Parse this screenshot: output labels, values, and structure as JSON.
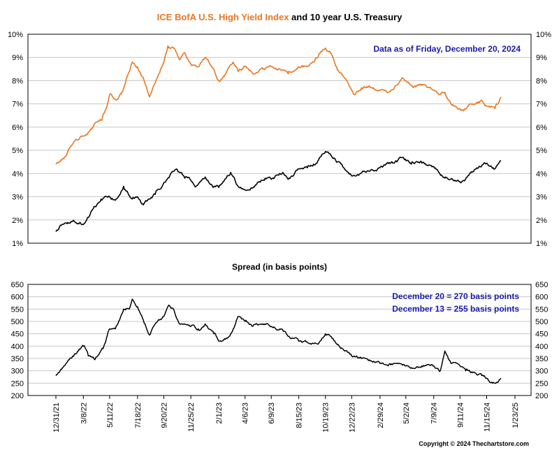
{
  "chart_data": [
    {
      "type": "line",
      "title_parts": [
        {
          "text": "ICE BofA U.S. High Yield Index",
          "color": "#e87722"
        },
        {
          "text": " and 10 year U.S. Treasury",
          "color": "#000000"
        }
      ],
      "annotation": "Data as of Friday, December 20, 2024",
      "annotation_color": "#1a1aa8",
      "ylim": [
        1,
        10
      ],
      "y_ticks": [
        "1%",
        "2%",
        "3%",
        "4%",
        "5%",
        "6%",
        "7%",
        "8%",
        "9%",
        "10%"
      ],
      "x_range": [
        "2021-12-31",
        "2025-01-23"
      ],
      "grid": true,
      "series": [
        {
          "name": "ICE BofA U.S. High Yield Index",
          "color": "#e87722",
          "points": [
            [
              "2021-12-31",
              4.4
            ],
            [
              "2022-01-21",
              4.7
            ],
            [
              "2022-02-11",
              5.3
            ],
            [
              "2022-03-04",
              5.6
            ],
            [
              "2022-03-18",
              5.7
            ],
            [
              "2022-04-01",
              6.0
            ],
            [
              "2022-04-22",
              6.3
            ],
            [
              "2022-05-06",
              7.0
            ],
            [
              "2022-05-11",
              7.4
            ],
            [
              "2022-05-25",
              7.2
            ],
            [
              "2022-06-10",
              7.5
            ],
            [
              "2022-06-23",
              8.2
            ],
            [
              "2022-07-05",
              8.8
            ],
            [
              "2022-07-18",
              8.6
            ],
            [
              "2022-08-05",
              7.9
            ],
            [
              "2022-08-16",
              7.3
            ],
            [
              "2022-08-30",
              7.9
            ],
            [
              "2022-09-20",
              8.8
            ],
            [
              "2022-09-30",
              9.5
            ],
            [
              "2022-10-14",
              9.4
            ],
            [
              "2022-10-28",
              8.9
            ],
            [
              "2022-11-10",
              9.2
            ],
            [
              "2022-11-25",
              8.7
            ],
            [
              "2022-12-13",
              8.6
            ],
            [
              "2022-12-30",
              9.0
            ],
            [
              "2023-01-20",
              8.5
            ],
            [
              "2023-02-01",
              8.0
            ],
            [
              "2023-02-15",
              8.2
            ],
            [
              "2023-03-08",
              8.8
            ],
            [
              "2023-03-20",
              8.4
            ],
            [
              "2023-04-06",
              8.6
            ],
            [
              "2023-04-25",
              8.3
            ],
            [
              "2023-05-20",
              8.5
            ],
            [
              "2023-06-09",
              8.6
            ],
            [
              "2023-06-30",
              8.5
            ],
            [
              "2023-07-20",
              8.3
            ],
            [
              "2023-08-15",
              8.6
            ],
            [
              "2023-09-05",
              8.6
            ],
            [
              "2023-09-20",
              8.8
            ],
            [
              "2023-10-06",
              9.2
            ],
            [
              "2023-10-19",
              9.4
            ],
            [
              "2023-10-31",
              9.2
            ],
            [
              "2023-11-15",
              8.6
            ],
            [
              "2023-12-05",
              8.1
            ],
            [
              "2023-12-22",
              7.6
            ],
            [
              "2023-12-28",
              7.4
            ],
            [
              "2024-01-15",
              7.7
            ],
            [
              "2024-02-05",
              7.7
            ],
            [
              "2024-02-29",
              7.6
            ],
            [
              "2024-03-20",
              7.5
            ],
            [
              "2024-04-10",
              7.8
            ],
            [
              "2024-04-25",
              8.1
            ],
            [
              "2024-05-02",
              8.0
            ],
            [
              "2024-05-20",
              7.7
            ],
            [
              "2024-06-10",
              7.8
            ],
            [
              "2024-06-28",
              7.7
            ],
            [
              "2024-07-09",
              7.6
            ],
            [
              "2024-07-25",
              7.4
            ],
            [
              "2024-08-05",
              7.5
            ],
            [
              "2024-08-20",
              7.0
            ],
            [
              "2024-09-11",
              6.8
            ],
            [
              "2024-09-20",
              6.7
            ],
            [
              "2024-10-05",
              7.0
            ],
            [
              "2024-10-20",
              7.0
            ],
            [
              "2024-11-05",
              7.1
            ],
            [
              "2024-11-15",
              6.9
            ],
            [
              "2024-12-05",
              6.8
            ],
            [
              "2024-12-13",
              7.0
            ],
            [
              "2024-12-20",
              7.3
            ]
          ]
        },
        {
          "name": "10 year U.S. Treasury",
          "color": "#000000",
          "points": [
            [
              "2021-12-31",
              1.5
            ],
            [
              "2022-01-15",
              1.8
            ],
            [
              "2022-02-10",
              1.95
            ],
            [
              "2022-03-08",
              1.8
            ],
            [
              "2022-03-28",
              2.4
            ],
            [
              "2022-04-20",
              2.9
            ],
            [
              "2022-05-11",
              3.0
            ],
            [
              "2022-05-25",
              2.85
            ],
            [
              "2022-06-14",
              3.45
            ],
            [
              "2022-07-05",
              2.9
            ],
            [
              "2022-07-18",
              3.0
            ],
            [
              "2022-08-01",
              2.65
            ],
            [
              "2022-08-30",
              3.1
            ],
            [
              "2022-09-20",
              3.6
            ],
            [
              "2022-10-21",
              4.2
            ],
            [
              "2022-11-10",
              3.8
            ],
            [
              "2022-11-25",
              3.7
            ],
            [
              "2022-12-08",
              3.45
            ],
            [
              "2022-12-30",
              3.85
            ],
            [
              "2023-01-18",
              3.4
            ],
            [
              "2023-02-01",
              3.4
            ],
            [
              "2023-03-02",
              4.05
            ],
            [
              "2023-03-20",
              3.45
            ],
            [
              "2023-04-06",
              3.3
            ],
            [
              "2023-05-01",
              3.5
            ],
            [
              "2023-05-25",
              3.8
            ],
            [
              "2023-06-09",
              3.75
            ],
            [
              "2023-07-07",
              4.05
            ],
            [
              "2023-07-20",
              3.75
            ],
            [
              "2023-08-15",
              4.2
            ],
            [
              "2023-09-05",
              4.25
            ],
            [
              "2023-09-20",
              4.4
            ],
            [
              "2023-10-19",
              4.95
            ],
            [
              "2023-11-01",
              4.8
            ],
            [
              "2023-11-30",
              4.3
            ],
            [
              "2023-12-22",
              3.9
            ],
            [
              "2024-01-12",
              4.0
            ],
            [
              "2024-02-29",
              4.25
            ],
            [
              "2024-04-10",
              4.5
            ],
            [
              "2024-04-25",
              4.7
            ],
            [
              "2024-05-15",
              4.4
            ],
            [
              "2024-06-10",
              4.45
            ],
            [
              "2024-07-09",
              4.3
            ],
            [
              "2024-08-05",
              3.8
            ],
            [
              "2024-09-11",
              3.65
            ],
            [
              "2024-09-20",
              3.7
            ],
            [
              "2024-10-20",
              4.2
            ],
            [
              "2024-11-15",
              4.45
            ],
            [
              "2024-12-05",
              4.2
            ],
            [
              "2024-12-13",
              4.4
            ],
            [
              "2024-12-20",
              4.55
            ]
          ]
        }
      ]
    },
    {
      "type": "line",
      "title": "Spread (in basis points)",
      "annotations": [
        "December 20 = 270 basis points",
        "December 13 = 255 basis points"
      ],
      "annotation_color": "#1a1aa8",
      "ylim": [
        200,
        650
      ],
      "y_ticks": [
        "200",
        "250",
        "300",
        "350",
        "400",
        "450",
        "500",
        "550",
        "600",
        "650"
      ],
      "x_range": [
        "2021-12-31",
        "2025-01-23"
      ],
      "x_ticks": [
        "12/31/21",
        "3/8/22",
        "5/11/22",
        "7/18/22",
        "9/20/22",
        "11/25/22",
        "2/1/23",
        "4/6/23",
        "6/9/23",
        "8/15/23",
        "10/19/23",
        "12/22/23",
        "2/29/24",
        "5/2/24",
        "7/9/24",
        "9/11/24",
        "11/15/24",
        "1/23/25"
      ],
      "x_tick_dates": [
        "2021-12-31",
        "2022-03-08",
        "2022-05-11",
        "2022-07-18",
        "2022-09-20",
        "2022-11-25",
        "2023-02-01",
        "2023-04-06",
        "2023-06-09",
        "2023-08-15",
        "2023-10-19",
        "2023-12-22",
        "2024-02-29",
        "2024-05-02",
        "2024-07-09",
        "2024-09-11",
        "2024-11-15",
        "2025-01-23"
      ],
      "grid": true,
      "series": [
        {
          "name": "Spread",
          "color": "#000000",
          "points": [
            [
              "2021-12-31",
              280
            ],
            [
              "2022-01-20",
              320
            ],
            [
              "2022-02-10",
              360
            ],
            [
              "2022-03-08",
              400
            ],
            [
              "2022-03-20",
              360
            ],
            [
              "2022-04-05",
              345
            ],
            [
              "2022-04-25",
              390
            ],
            [
              "2022-05-11",
              470
            ],
            [
              "2022-05-25",
              470
            ],
            [
              "2022-06-14",
              550
            ],
            [
              "2022-06-30",
              560
            ],
            [
              "2022-07-05",
              590
            ],
            [
              "2022-07-18",
              560
            ],
            [
              "2022-08-05",
              490
            ],
            [
              "2022-08-16",
              445
            ],
            [
              "2022-08-30",
              490
            ],
            [
              "2022-09-20",
              520
            ],
            [
              "2022-09-30",
              560
            ],
            [
              "2022-10-14",
              550
            ],
            [
              "2022-10-28",
              490
            ],
            [
              "2022-11-25",
              480
            ],
            [
              "2022-12-13",
              470
            ],
            [
              "2022-12-30",
              490
            ],
            [
              "2023-01-20",
              450
            ],
            [
              "2023-02-01",
              420
            ],
            [
              "2023-02-15",
              430
            ],
            [
              "2023-03-02",
              450
            ],
            [
              "2023-03-20",
              520
            ],
            [
              "2023-04-06",
              500
            ],
            [
              "2023-04-25",
              480
            ],
            [
              "2023-05-20",
              490
            ],
            [
              "2023-06-09",
              480
            ],
            [
              "2023-06-30",
              470
            ],
            [
              "2023-07-20",
              440
            ],
            [
              "2023-08-15",
              420
            ],
            [
              "2023-09-20",
              410
            ],
            [
              "2023-10-06",
              420
            ],
            [
              "2023-10-19",
              450
            ],
            [
              "2023-10-31",
              440
            ],
            [
              "2023-11-15",
              410
            ],
            [
              "2023-12-05",
              380
            ],
            [
              "2023-12-22",
              360
            ],
            [
              "2024-01-15",
              350
            ],
            [
              "2024-02-05",
              340
            ],
            [
              "2024-02-29",
              330
            ],
            [
              "2024-03-20",
              320
            ],
            [
              "2024-04-10",
              330
            ],
            [
              "2024-05-02",
              320
            ],
            [
              "2024-05-20",
              310
            ],
            [
              "2024-06-10",
              320
            ],
            [
              "2024-07-09",
              320
            ],
            [
              "2024-07-25",
              300
            ],
            [
              "2024-08-05",
              380
            ],
            [
              "2024-08-20",
              330
            ],
            [
              "2024-09-11",
              320
            ],
            [
              "2024-09-25",
              300
            ],
            [
              "2024-10-20",
              290
            ],
            [
              "2024-11-15",
              270
            ],
            [
              "2024-12-05",
              250
            ],
            [
              "2024-12-13",
              255
            ],
            [
              "2024-12-20",
              270
            ]
          ]
        }
      ]
    }
  ],
  "footer": "Copyright © 2024 Thechartstore.com"
}
